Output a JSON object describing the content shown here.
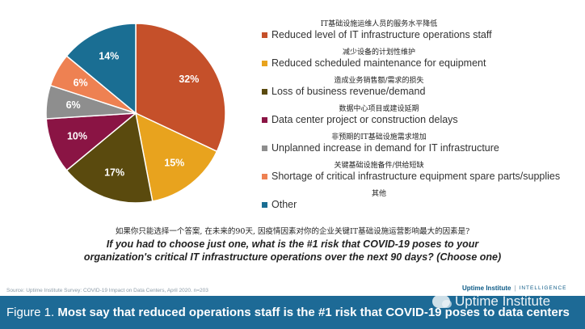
{
  "chart_data": {
    "type": "pie",
    "slices": [
      {
        "label_zh": "IT基础设施运维人员的服务水平降低",
        "label": "Reduced level of IT infrastructure operations staff",
        "value": 32,
        "display": "32%",
        "color": "#c5502a"
      },
      {
        "label_zh": "减少设备的计划性维护",
        "label": "Reduced scheduled maintenance for equipment",
        "value": 15,
        "display": "15%",
        "color": "#e8a31e"
      },
      {
        "label_zh": "造成业务销售额/需求的损失",
        "label": "Loss of business revenue/demand",
        "value": 17,
        "display": "17%",
        "color": "#5a4a0e"
      },
      {
        "label_zh": "数据中心项目或建设延期",
        "label": "Data center project or construction delays",
        "value": 10,
        "display": "10%",
        "color": "#8a1444"
      },
      {
        "label_zh": "非预期的IT基础设施需求增加",
        "label": "Unplanned increase in demand for IT infrastructure",
        "value": 6,
        "display": "6%",
        "color": "#8e8e8e"
      },
      {
        "label_zh": "关键基础设施备件/供给短缺",
        "label": "Shortage of critical infrastructure equipment spare parts/supplies",
        "value": 6,
        "display": "6%",
        "color": "#ee8152"
      },
      {
        "label_zh": "其他",
        "label": "Other",
        "value": 14,
        "display": "14%",
        "color": "#1a6e93"
      }
    ]
  },
  "question": {
    "zh": "如果你只能选择一个答案, 在未来的90天, 因疫情因素对你的企业关键IT基础设施运营影响最大的因素是?",
    "en": "If you had to choose just one, what is the #1 risk that COVID-19 poses to your organization's critical IT infrastructure operations over the next 90 days? (Choose one)"
  },
  "source": "Source: Uptime Institute Survey: COVID-19 Impact on Data Centers, April 2020. n=203",
  "brand": {
    "name": "Uptime Institute",
    "separator": "|",
    "tag": "INTELLIGENCE"
  },
  "caption": {
    "prefix": "Figure 1.",
    "text": "Most say that reduced operations staff is the #1 risk that COVID-19 poses to data centers"
  },
  "watermark": {
    "text": "Uptime Institute",
    "icon": "wechat-icon"
  }
}
